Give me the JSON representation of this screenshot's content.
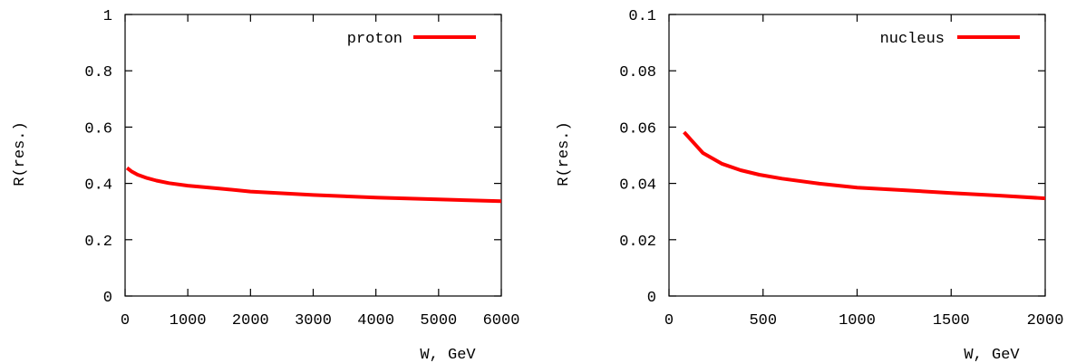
{
  "chart_data": [
    {
      "type": "line",
      "xlabel": "W, GeV",
      "ylabel": "R(res.)",
      "xlim": [
        0,
        6000
      ],
      "ylim": [
        0,
        1
      ],
      "xticks": [
        0,
        1000,
        2000,
        3000,
        4000,
        5000,
        6000
      ],
      "xtick_labels": [
        "0",
        "1000",
        "2000",
        "3000",
        "4000",
        "5000",
        "6000"
      ],
      "yticks": [
        0,
        0.2,
        0.4,
        0.6,
        0.8,
        1
      ],
      "ytick_labels": [
        "0",
        "0.2",
        "0.4",
        "0.6",
        "0.8",
        "1"
      ],
      "grid": false,
      "legend_position": "top-right",
      "series": [
        {
          "name": "proton",
          "color": "#ff0000",
          "x": [
            30,
            100,
            200,
            350,
            500,
            700,
            1000,
            1500,
            2000,
            3000,
            4000,
            5000,
            6000
          ],
          "y": [
            0.455,
            0.443,
            0.431,
            0.419,
            0.41,
            0.401,
            0.392,
            0.382,
            0.371,
            0.359,
            0.35,
            0.343,
            0.337
          ]
        }
      ]
    },
    {
      "type": "line",
      "xlabel": "W, GeV",
      "ylabel": "R(res.)",
      "xlim": [
        0,
        2000
      ],
      "ylim": [
        0,
        0.1
      ],
      "xticks": [
        0,
        500,
        1000,
        1500,
        2000
      ],
      "xtick_labels": [
        "0",
        "500",
        "1000",
        "1500",
        "2000"
      ],
      "yticks": [
        0,
        0.02,
        0.04,
        0.06,
        0.08,
        0.1
      ],
      "ytick_labels": [
        "0",
        "0.02",
        "0.04",
        "0.06",
        "0.08",
        "0.1"
      ],
      "grid": false,
      "legend_position": "top-right",
      "series": [
        {
          "name": "nucleus",
          "color": "#ff0000",
          "x": [
            80,
            180,
            280,
            380,
            480,
            600,
            800,
            1000,
            1250,
            1500,
            1750,
            2000
          ],
          "y": [
            0.0582,
            0.0508,
            0.047,
            0.0447,
            0.0431,
            0.0417,
            0.0399,
            0.0385,
            0.0376,
            0.0366,
            0.0357,
            0.0347
          ]
        }
      ]
    }
  ]
}
